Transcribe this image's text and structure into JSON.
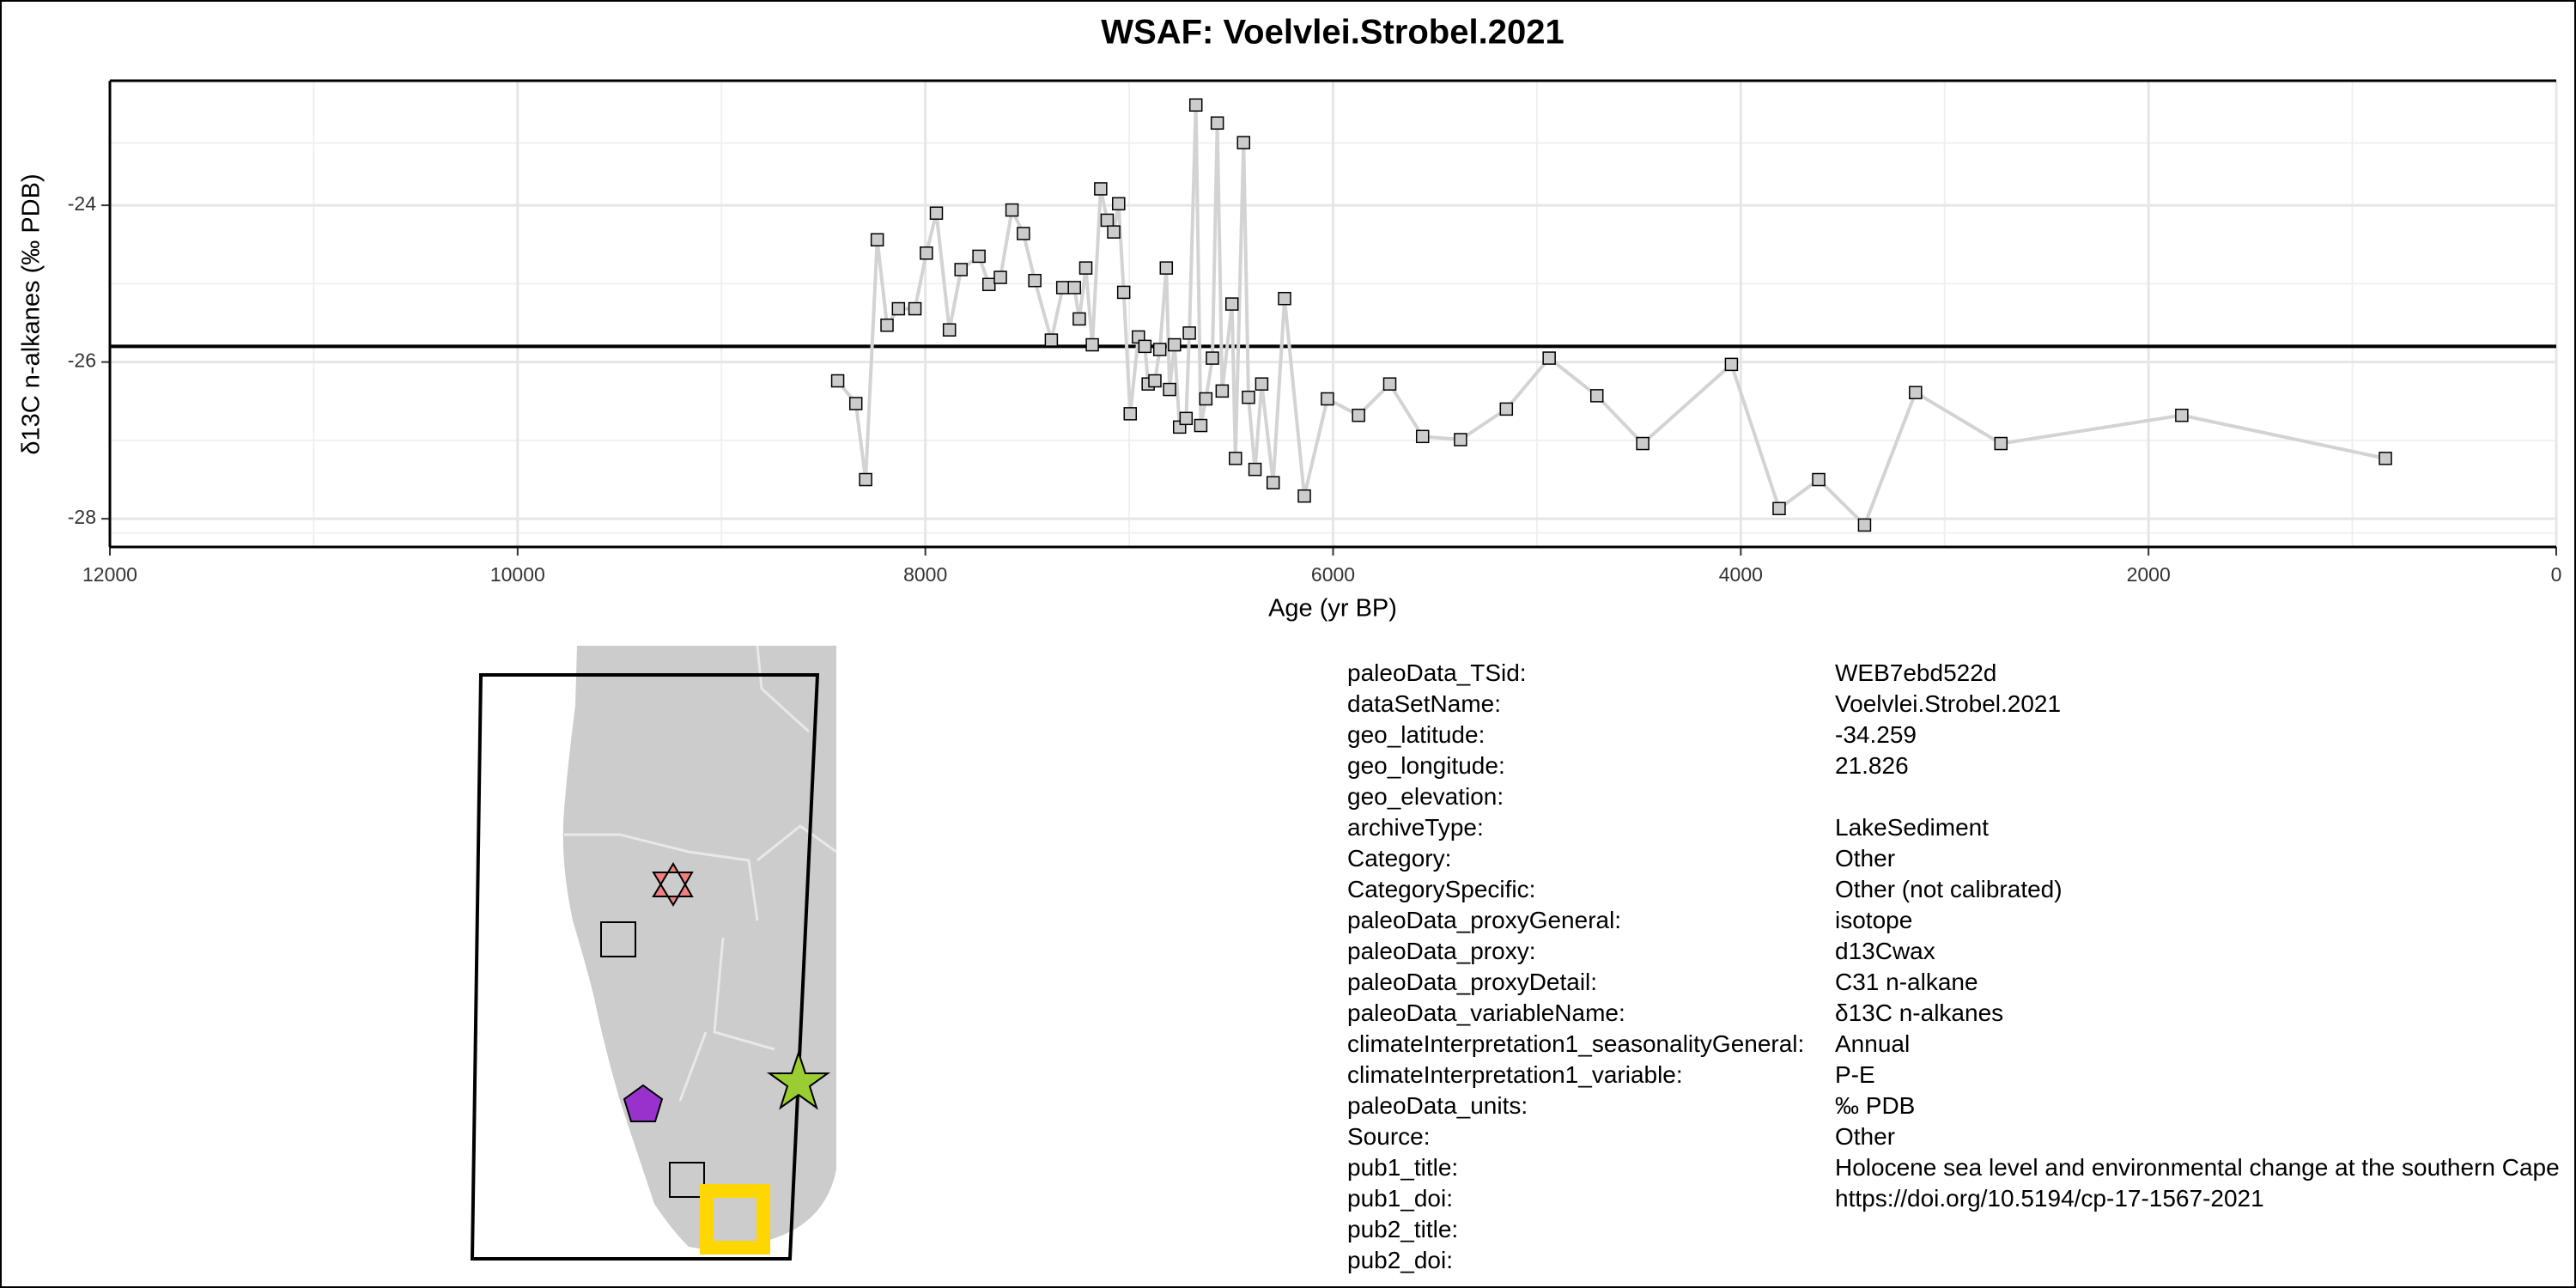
{
  "chart_data": {
    "type": "line",
    "title": "WSAF: Voelvlei.Strobel.2021",
    "x_label": "Age (yr BP)",
    "y_label": "δ13C n-alkanes (‰ PDB)",
    "x": [
      8430,
      8341,
      8293,
      8236,
      8188,
      8132,
      8051,
      7995,
      7946,
      7882,
      7825,
      7737,
      7688,
      7632,
      7575,
      7519,
      7463,
      7382,
      7326,
      7269,
      7245,
      7213,
      7181,
      7140,
      7108,
      7076,
      7052,
      7027,
      6995,
      6955,
      6923,
      6907,
      6874,
      6850,
      6818,
      6802,
      6778,
      6753,
      6721,
      6705,
      6673,
      6649,
      6624,
      6592,
      6568,
      6544,
      6496,
      6479,
      6439,
      6415,
      6383,
      6350,
      6294,
      6238,
      6141,
      6028,
      5875,
      5722,
      5561,
      5375,
      5150,
      4940,
      4706,
      4481,
      4046,
      3812,
      3618,
      3393,
      3143,
      2724,
      1837,
      838
    ],
    "series": [
      {
        "color": "#d3d3d3",
        "marker_color": "#cccccc",
        "values": [
          -26.24,
          -26.53,
          -27.5,
          -24.44,
          -25.53,
          -25.32,
          -25.32,
          -24.61,
          -24.1,
          -25.59,
          -24.82,
          -24.65,
          -25.01,
          -24.92,
          -24.06,
          -24.36,
          -24.96,
          -25.72,
          -25.05,
          -25.05,
          -25.45,
          -24.8,
          -25.78,
          -23.79,
          -24.19,
          -24.34,
          -23.98,
          -25.11,
          -26.66,
          -25.68,
          -25.8,
          -26.28,
          -26.24,
          -25.84,
          -24.8,
          -26.35,
          -25.78,
          -26.83,
          -26.72,
          -25.63,
          -22.72,
          -26.81,
          -26.47,
          -25.95,
          -22.95,
          -26.37,
          -25.26,
          -27.23,
          -23.2,
          -26.45,
          -27.37,
          -26.28,
          -27.54,
          -25.19,
          -27.71,
          -26.47,
          -26.68,
          -26.28,
          -26.95,
          -26.99,
          -26.6,
          -25.95,
          -26.43,
          -27.04,
          -26.03,
          -27.87,
          -27.5,
          -28.08,
          -26.39,
          -27.04,
          -26.68,
          -27.23
        ]
      }
    ],
    "hline": -25.8,
    "xlim": [
      12000,
      0
    ],
    "xticks": [
      12000,
      10000,
      8000,
      6000,
      4000,
      2000,
      0
    ],
    "ylim": [
      -28.36,
      -22.41
    ],
    "yticks": [
      -24,
      -26,
      -28
    ],
    "grid": true
  },
  "metadata": {
    "rows": [
      [
        "paleoData_TSid:",
        "WEB7ebd522d"
      ],
      [
        "dataSetName:",
        "Voelvlei.Strobel.2021"
      ],
      [
        "geo_latitude:",
        "-34.259"
      ],
      [
        "geo_longitude:",
        "21.826"
      ],
      [
        "geo_elevation:"
      ],
      [
        "archiveType:",
        "LakeSediment"
      ],
      [
        "Category:",
        "Other"
      ],
      [
        "CategorySpecific:",
        "Other (not calibrated)"
      ],
      [
        "paleoData_proxyGeneral:",
        "isotope"
      ],
      [
        "paleoData_proxy:",
        "d13Cwax"
      ],
      [
        "paleoData_proxyDetail:",
        "C31 n-alkane"
      ],
      [
        "paleoData_variableName:",
        "δ13C n-alkanes"
      ],
      [
        "climateInterpretation1_seasonalityGeneral:",
        "Annual"
      ],
      [
        "climateInterpretation1_variable:",
        "P-E"
      ],
      [
        "paleoData_units:",
        "‰ PDB"
      ],
      [
        "Source:",
        "Other"
      ],
      [
        "pub1_title:",
        "Holocene sea level and environmental change at the southern Cape"
      ],
      [
        "pub1_doi:",
        "https://doi.org/10.5194/cp-17-1567-2021"
      ],
      [
        "pub2_title:"
      ],
      [
        "pub2_doi:"
      ]
    ]
  }
}
